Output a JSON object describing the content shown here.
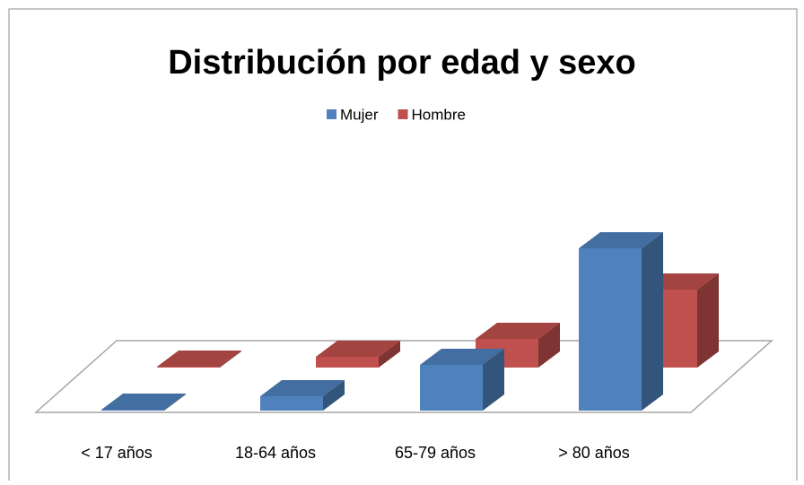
{
  "chart_data": {
    "type": "bar3d",
    "title": "Distribución por edad y sexo",
    "categories": [
      "< 17 años",
      "18-64 años",
      "65-79 años",
      "> 80 años"
    ],
    "series": [
      {
        "name": "Mujer",
        "color": "#4f81bd",
        "values": [
          1,
          16,
          51,
          181
        ]
      },
      {
        "name": "Hombre",
        "color": "#c0504d",
        "values": [
          1,
          12,
          32,
          87
        ]
      }
    ],
    "ylim": [
      0,
      200
    ],
    "legend": "top"
  }
}
